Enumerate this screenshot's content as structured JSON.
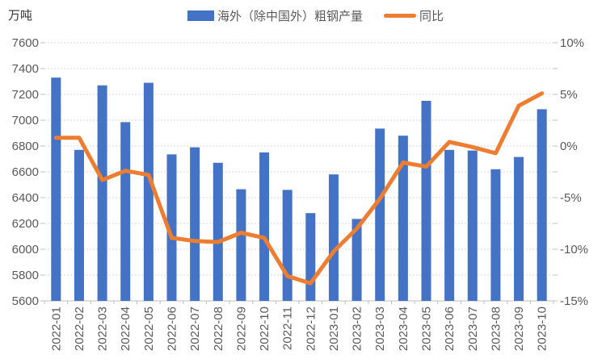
{
  "unit_label": "万吨",
  "legend": {
    "items": [
      {
        "label": "海外（除中国外）粗钢产量",
        "marker": "bar-swatch",
        "color": "#4472C4"
      },
      {
        "label": "同比",
        "marker": "line-swatch",
        "color": "#ED7D31"
      }
    ]
  },
  "colors": {
    "bar": "#4472C4",
    "line": "#ED7D31",
    "gridline": "#D6D6D6",
    "axis_line": "#BFBFBF",
    "axis_text": "#595959"
  },
  "chart_data": {
    "type": "bar",
    "title": "",
    "xlabel": "",
    "ylabel_left_unit": "万吨",
    "categories": [
      "2022-01",
      "2022-02",
      "2022-03",
      "2022-04",
      "2022-05",
      "2022-06",
      "2022-07",
      "2022-08",
      "2022-09",
      "2022-10",
      "2022-11",
      "2022-12",
      "2023-01",
      "2023-02",
      "2023-03",
      "2023-04",
      "2023-05",
      "2023-06",
      "2023-07",
      "2023-08",
      "2023-09",
      "2023-10"
    ],
    "series": [
      {
        "name": "海外（除中国外）粗钢产量",
        "type": "bar",
        "axis": "left",
        "color": "#4472C4",
        "values": [
          7330,
          6770,
          7270,
          6985,
          7290,
          6735,
          6790,
          6670,
          6465,
          6750,
          6460,
          6280,
          6580,
          6235,
          6935,
          6880,
          7150,
          6770,
          6765,
          6620,
          6715,
          7085
        ]
      },
      {
        "name": "同比",
        "type": "line",
        "axis": "right",
        "color": "#ED7D31",
        "values": [
          0.8,
          0.8,
          -3.3,
          -2.4,
          -2.8,
          -8.9,
          -9.2,
          -9.3,
          -8.4,
          -8.9,
          -12.6,
          -13.3,
          -10.2,
          -8.0,
          -5.1,
          -1.6,
          -2.0,
          0.4,
          -0.1,
          -0.7,
          3.9,
          5.1
        ]
      }
    ],
    "left_axis": {
      "min": 5600,
      "max": 7600,
      "tick_labels": [
        "7600",
        "7400",
        "7200",
        "7000",
        "6800",
        "6600",
        "6400",
        "6200",
        "6000",
        "5800",
        "5600"
      ]
    },
    "right_axis": {
      "min": -15,
      "max": 10,
      "tick_labels": [
        "10%",
        "5%",
        "0%",
        "-5%",
        "-10%",
        "-15%"
      ]
    },
    "grid": true,
    "legend_position": "top"
  }
}
